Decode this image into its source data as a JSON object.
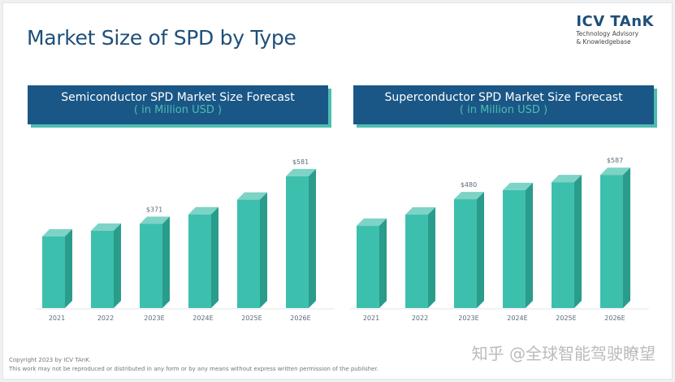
{
  "title": "Market Size of SPD by Type",
  "logo": {
    "name": "ICV TAnK",
    "tagline1": "Technology Advisory",
    "tagline2": "& Knowledgebase"
  },
  "chart_data": [
    {
      "type": "bar",
      "title": "Semiconductor SPD Market Size Forecast",
      "subtitle": "( in Million USD )",
      "categories": [
        "2021",
        "2022",
        "2023E",
        "2024E",
        "2025E",
        "2026E"
      ],
      "values": [
        316,
        341,
        371,
        413,
        478,
        581
      ],
      "data_labels": [
        "",
        "",
        "$371",
        "",
        "",
        "$581"
      ],
      "color": "#3dbfad"
    },
    {
      "type": "bar",
      "title": "Superconductor SPD Market Size Forecast",
      "subtitle": "( in Million USD )",
      "categories": [
        "2021",
        "2022",
        "2023E",
        "2024E",
        "2025E",
        "2026E"
      ],
      "values": [
        363,
        412,
        480,
        520,
        555,
        587
      ],
      "data_labels": [
        "",
        "",
        "$480",
        "",
        "",
        "$587"
      ],
      "color": "#3dbfad"
    }
  ],
  "footer": {
    "copyright": "Copyright  2023 by ICV TAnK.",
    "notice": "This work may not be reproduced or distributed in any form or by any means without express written permission of the publisher."
  },
  "watermark": "知乎 @全球智能驾驶瞭望"
}
